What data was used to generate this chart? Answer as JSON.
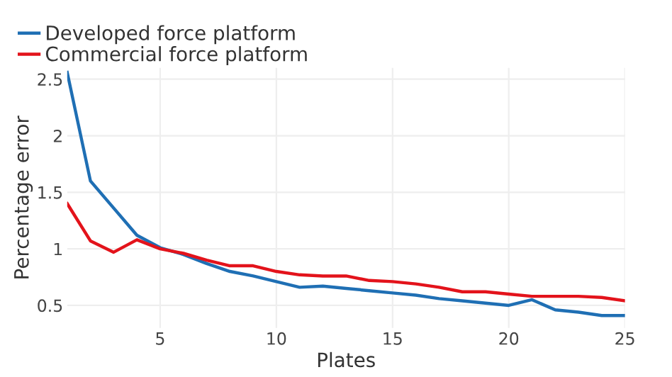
{
  "chart_data": {
    "type": "line",
    "xlabel": "Plates",
    "ylabel": "Percentage error",
    "x": [
      1,
      2,
      3,
      4,
      5,
      6,
      7,
      8,
      9,
      10,
      11,
      12,
      13,
      14,
      15,
      16,
      17,
      18,
      19,
      20,
      21,
      22,
      23,
      24,
      25
    ],
    "series": [
      {
        "name": "Developed force platform",
        "color": "#1f6fb4",
        "values": [
          2.56,
          1.6,
          1.36,
          1.12,
          1.01,
          0.95,
          0.87,
          0.8,
          0.76,
          0.71,
          0.66,
          0.67,
          0.65,
          0.63,
          0.61,
          0.59,
          0.56,
          0.54,
          0.52,
          0.5,
          0.55,
          0.46,
          0.44,
          0.41,
          0.41
        ]
      },
      {
        "name": "Commercial force platform",
        "color": "#e3131b",
        "values": [
          1.4,
          1.07,
          0.97,
          1.08,
          1.0,
          0.96,
          0.9,
          0.85,
          0.85,
          0.8,
          0.77,
          0.76,
          0.76,
          0.72,
          0.71,
          0.69,
          0.66,
          0.62,
          0.62,
          0.6,
          0.58,
          0.58,
          0.58,
          0.57,
          0.54
        ]
      }
    ],
    "xlim": [
      1,
      25
    ],
    "ylim": [
      0.3,
      2.6
    ],
    "xticks": [
      5,
      10,
      15,
      20,
      25
    ],
    "yticks": [
      0.5,
      1,
      1.5,
      2,
      2.5
    ],
    "grid": true,
    "legend": "top left",
    "marker": "none",
    "line_style": "solid"
  }
}
